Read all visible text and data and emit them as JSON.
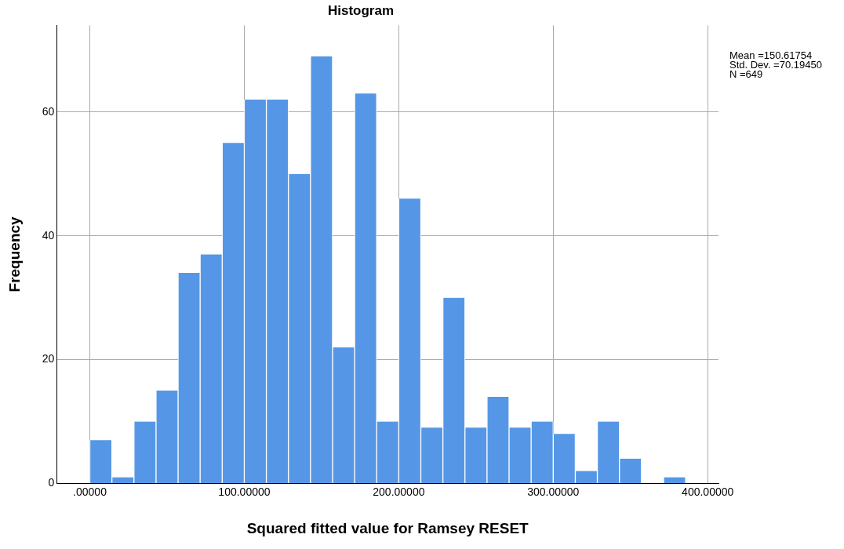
{
  "chart_data": {
    "type": "histogram",
    "title": "Histogram",
    "xlabel": "Squared fitted value for Ramsey RESET",
    "ylabel": "Frequency",
    "bins": [
      0,
      14.29,
      28.57,
      42.86,
      57.14,
      71.43,
      85.71,
      100,
      114.29,
      128.57,
      142.86,
      157.14,
      171.43,
      185.71,
      200,
      214.29,
      228.57,
      242.86,
      257.14,
      271.43,
      285.71,
      300,
      314.29,
      328.57,
      342.86,
      357.14,
      371.43,
      385.71
    ],
    "values": [
      7,
      1,
      10,
      15,
      34,
      37,
      55,
      62,
      62,
      50,
      69,
      22,
      63,
      10,
      46,
      9,
      30,
      9,
      14,
      9,
      10,
      8,
      2,
      10,
      4,
      0,
      1
    ],
    "color": "#5597e6",
    "xlim": [
      -21.4,
      407
    ],
    "ylim": [
      0,
      74
    ],
    "xticks": [
      {
        "value": 0,
        "label": ".00000"
      },
      {
        "value": 100,
        "label": "100.00000"
      },
      {
        "value": 200,
        "label": "200.00000"
      },
      {
        "value": 300,
        "label": "300.00000"
      },
      {
        "value": 400,
        "label": "400.00000"
      }
    ],
    "yticks": [
      0,
      20,
      40,
      60
    ],
    "grid": true,
    "legend": false,
    "annotations": [
      "Mean =150.61754",
      "Std. Dev. =70.19450",
      "N =649"
    ]
  }
}
